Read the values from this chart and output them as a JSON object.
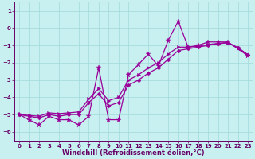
{
  "xlabel": "Windchill (Refroidissement éolien,°C)",
  "background_color": "#c8f0f0",
  "line_color": "#990099",
  "xlim": [
    -0.5,
    23.5
  ],
  "ylim": [
    -6.5,
    1.5
  ],
  "yticks": [
    1,
    0,
    -1,
    -2,
    -3,
    -4,
    -5,
    -6
  ],
  "xticks": [
    0,
    1,
    2,
    3,
    4,
    5,
    6,
    7,
    8,
    9,
    10,
    11,
    12,
    13,
    14,
    15,
    16,
    17,
    18,
    19,
    20,
    21,
    22,
    23
  ],
  "grid_color": "#a0d8d8",
  "x_data": [
    0,
    1,
    2,
    3,
    4,
    5,
    6,
    7,
    8,
    9,
    10,
    11,
    12,
    13,
    14,
    15,
    16,
    17,
    18,
    19,
    20,
    21,
    22,
    23
  ],
  "y_jagged": [
    -5.0,
    -5.3,
    -5.6,
    -5.1,
    -5.3,
    -5.3,
    -5.6,
    -5.1,
    -2.3,
    -5.3,
    -5.3,
    -2.7,
    -2.1,
    -1.5,
    -2.2,
    -0.7,
    0.4,
    -1.1,
    -1.0,
    -0.8,
    -0.8,
    -0.8,
    -1.2,
    -1.6
  ],
  "y_trend1": [
    -5.0,
    -5.1,
    -5.2,
    -5.0,
    -5.1,
    -5.0,
    -5.0,
    -4.3,
    -3.8,
    -4.5,
    -4.3,
    -3.3,
    -3.0,
    -2.6,
    -2.3,
    -1.8,
    -1.3,
    -1.2,
    -1.1,
    -1.0,
    -0.9,
    -0.85,
    -1.15,
    -1.55
  ],
  "y_trend2": [
    -5.0,
    -5.05,
    -5.1,
    -4.9,
    -4.95,
    -4.9,
    -4.85,
    -4.1,
    -3.5,
    -4.2,
    -4.0,
    -3.0,
    -2.7,
    -2.3,
    -2.0,
    -1.5,
    -1.1,
    -1.1,
    -1.05,
    -0.95,
    -0.88,
    -0.83,
    -1.13,
    -1.53
  ],
  "marker_size": 3,
  "linewidth": 0.9,
  "font_color": "#660066",
  "tick_fontsize": 5.0,
  "label_fontsize": 6.0
}
